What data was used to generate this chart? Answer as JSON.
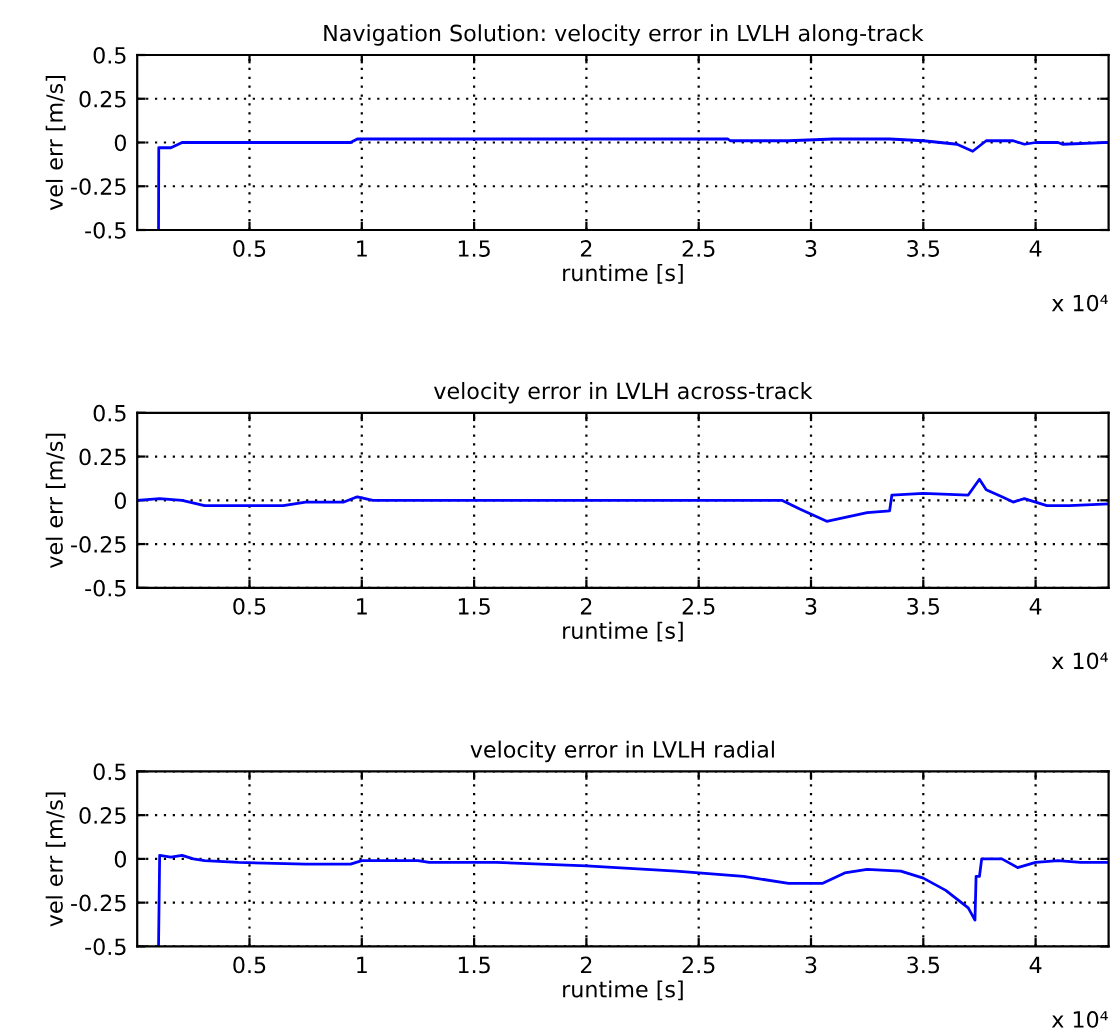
{
  "chart_data": [
    {
      "type": "line",
      "title": "Navigation Solution: velocity error in LVLH along-track",
      "xlabel": "runtime [s]",
      "ylabel": "vel err [m/s]",
      "annotations": [
        "x 10⁴"
      ],
      "xlim": [
        0,
        4.325
      ],
      "xticks": [
        0.5,
        1,
        1.5,
        2,
        2.5,
        3,
        3.5,
        4
      ],
      "ylim": [
        -0.5,
        0.5
      ],
      "yticks": [
        -0.5,
        -0.25,
        0,
        0.25,
        0.5
      ],
      "grid": true,
      "line_style": "solid",
      "series": [
        {
          "color": "#0000ff",
          "x": [
            0.095,
            0.096,
            0.15,
            0.2,
            0.95,
            0.98,
            2.63,
            2.64,
            2.9,
            3.1,
            3.35,
            3.5,
            3.65,
            3.72,
            3.78,
            3.9,
            3.95,
            4.0,
            4.1,
            4.12,
            4.325
          ],
          "values": [
            -0.5,
            -0.03,
            -0.03,
            0,
            0,
            0.02,
            0.02,
            0.01,
            0.01,
            0.02,
            0.02,
            0.01,
            -0.01,
            -0.05,
            0.01,
            0.01,
            -0.01,
            0,
            0,
            -0.01,
            0
          ]
        }
      ]
    },
    {
      "type": "line",
      "title": "velocity error in LVLH across-track",
      "xlabel": "runtime [s]",
      "ylabel": "vel err [m/s]",
      "annotations": [
        "x 10⁴"
      ],
      "xlim": [
        0,
        4.325
      ],
      "xticks": [
        0.5,
        1,
        1.5,
        2,
        2.5,
        3,
        3.5,
        4
      ],
      "ylim": [
        -0.5,
        0.5
      ],
      "yticks": [
        -0.5,
        -0.25,
        0,
        0.25,
        0.5
      ],
      "grid": true,
      "line_style": "solid",
      "series": [
        {
          "color": "#0000ff",
          "x": [
            0,
            0.1,
            0.2,
            0.3,
            0.65,
            0.75,
            0.92,
            0.98,
            1.05,
            2.87,
            2.95,
            3.07,
            3.25,
            3.35,
            3.36,
            3.5,
            3.7,
            3.75,
            3.78,
            3.85,
            3.9,
            3.95,
            4.0,
            4.05,
            4.15,
            4.325
          ],
          "values": [
            0,
            0.01,
            0,
            -0.03,
            -0.03,
            -0.01,
            -0.01,
            0.02,
            0,
            0,
            -0.05,
            -0.12,
            -0.07,
            -0.06,
            0.03,
            0.04,
            0.03,
            0.12,
            0.06,
            0.02,
            -0.01,
            0.01,
            -0.01,
            -0.03,
            -0.03,
            -0.02
          ]
        }
      ]
    },
    {
      "type": "line",
      "title": "velocity error in LVLH radial",
      "xlabel": "runtime [s]",
      "ylabel": "vel err [m/s]",
      "annotations": [
        "x 10⁴"
      ],
      "xlim": [
        0,
        4.325
      ],
      "xticks": [
        0.5,
        1,
        1.5,
        2,
        2.5,
        3,
        3.5,
        4
      ],
      "ylim": [
        -0.5,
        0.5
      ],
      "yticks": [
        -0.5,
        -0.25,
        0,
        0.25,
        0.5
      ],
      "grid": true,
      "line_style": "solid",
      "series": [
        {
          "color": "#0000ff",
          "x": [
            0.095,
            0.1,
            0.15,
            0.2,
            0.25,
            0.3,
            0.45,
            0.75,
            0.95,
            1.0,
            1.25,
            1.3,
            1.6,
            2.0,
            2.4,
            2.7,
            2.9,
            3.05,
            3.15,
            3.25,
            3.4,
            3.5,
            3.6,
            3.7,
            3.73,
            3.735,
            3.75,
            3.76,
            3.85,
            3.92,
            4.0,
            4.1,
            4.2,
            4.325
          ],
          "values": [
            -0.5,
            0.02,
            0.01,
            0.02,
            0,
            -0.01,
            -0.02,
            -0.03,
            -0.03,
            -0.01,
            -0.01,
            -0.02,
            -0.02,
            -0.04,
            -0.07,
            -0.1,
            -0.14,
            -0.14,
            -0.08,
            -0.06,
            -0.07,
            -0.11,
            -0.18,
            -0.28,
            -0.35,
            -0.1,
            -0.1,
            0,
            0,
            -0.05,
            -0.02,
            -0.01,
            -0.02,
            -0.02
          ]
        }
      ]
    }
  ]
}
